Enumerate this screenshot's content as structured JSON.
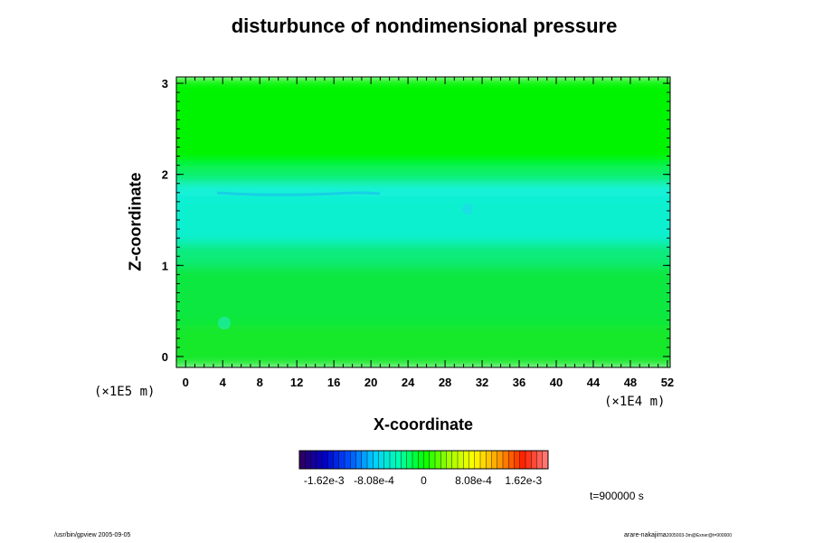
{
  "chart_data": {
    "type": "heatmap",
    "title": "disturbunce of nondimensional pressure",
    "xlabel": "X-coordinate",
    "ylabel": "Z-coordinate",
    "x_scale_note": "(×1E4 m)",
    "y_scale_note": "(×1E5 m)",
    "x_ticks": [
      "0",
      "4",
      "8",
      "12",
      "16",
      "20",
      "24",
      "28",
      "32",
      "36",
      "40",
      "44",
      "48",
      "52"
    ],
    "y_ticks": [
      "0",
      "1",
      "2",
      "3"
    ],
    "xlim": [
      -1,
      52.3
    ],
    "ylim": [
      -0.12,
      3.07
    ],
    "bands": [
      {
        "z_from": -0.12,
        "z_to": 0.35,
        "color": "#12e82a"
      },
      {
        "z_from": 0.35,
        "z_to": 1.0,
        "color": "#0ce83f"
      },
      {
        "z_from": 1.0,
        "z_to": 1.25,
        "color": "#0aeb7a"
      },
      {
        "z_from": 1.25,
        "z_to": 1.8,
        "color": "#0af0d0"
      },
      {
        "z_from": 1.8,
        "z_to": 1.9,
        "color": "#1cf2e6"
      },
      {
        "z_from": 1.9,
        "z_to": 2.1,
        "color": "#0ef06a"
      },
      {
        "z_from": 2.1,
        "z_to": 3.07,
        "color": "#00f400"
      }
    ],
    "colorbar": {
      "ticks": [
        "-1.62e-3",
        "-8.08e-4",
        "0",
        "8.08e-4",
        "1.62e-3"
      ],
      "tick_values": [
        -0.00162,
        -0.000808,
        0,
        0.000808,
        0.00162
      ],
      "range": [
        -0.00202,
        0.00202
      ],
      "colors": [
        "#30005a",
        "#0000c8",
        "#0050ff",
        "#00d0ff",
        "#00ffb0",
        "#00ff00",
        "#a0ff00",
        "#ffff00",
        "#ffa000",
        "#ff2000",
        "#ff8080"
      ]
    },
    "annotation": "t=900000 s"
  },
  "footer": {
    "left": "/usr/bin/gpview 2005-09-05",
    "right": "arare-nakajima",
    "right_sub": "2005003-3m@Exner@t=900000"
  }
}
